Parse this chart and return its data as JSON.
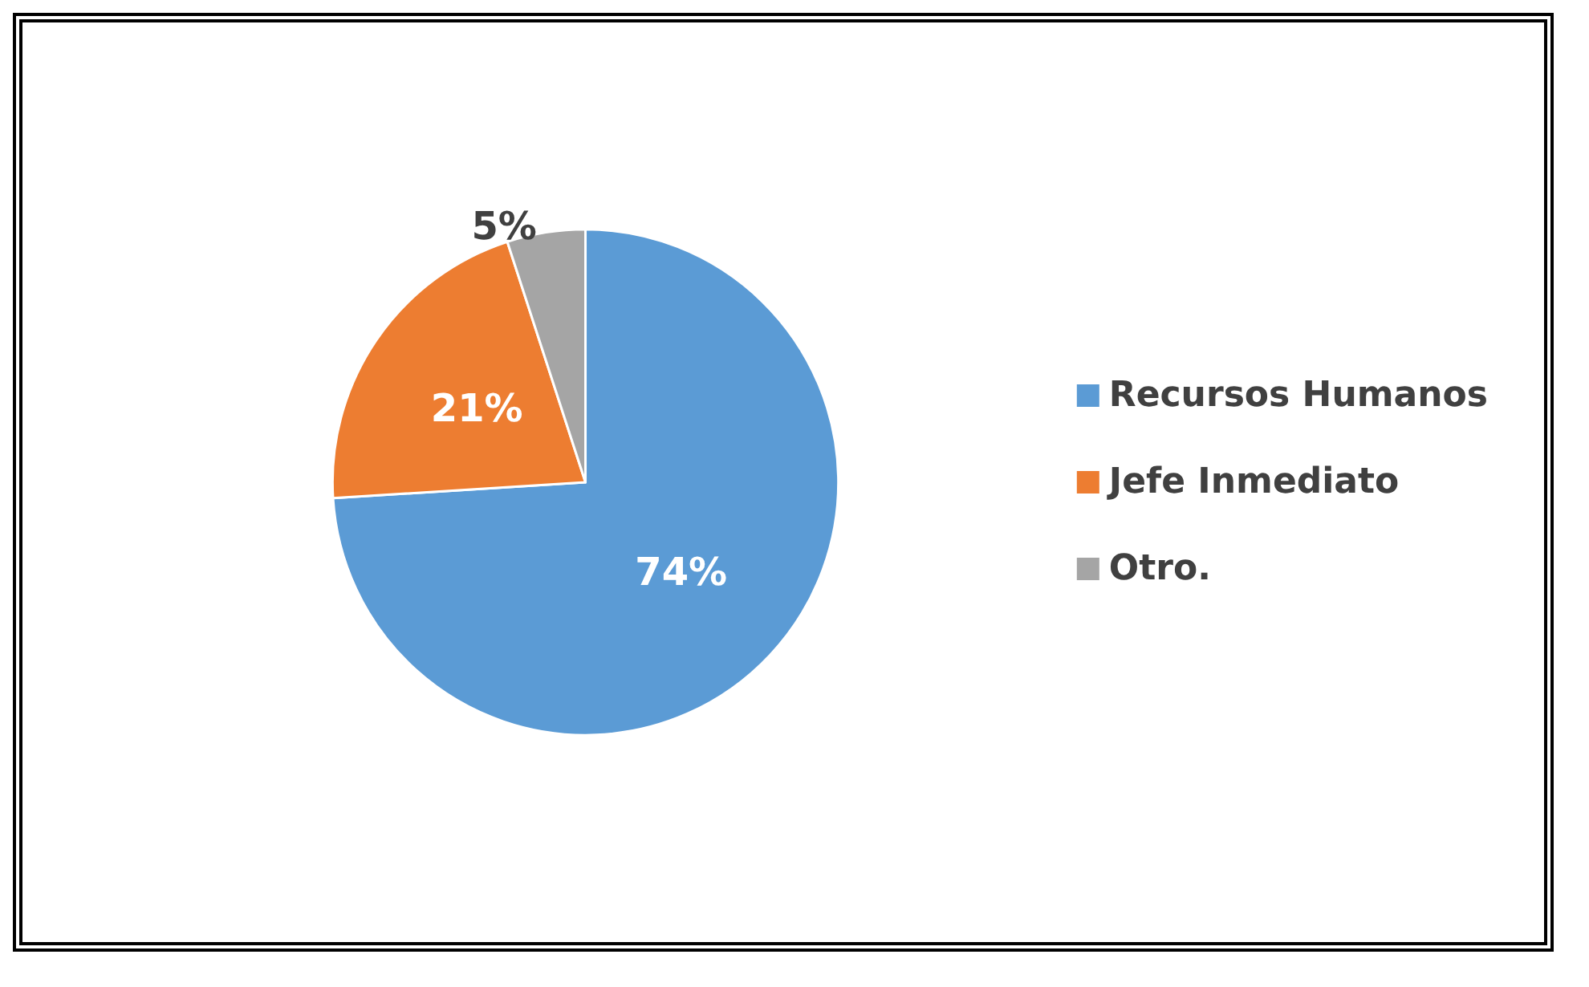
{
  "chart_data": {
    "type": "pie",
    "categories": [
      "Recursos Humanos",
      "Jefe Inmediato",
      "Otro."
    ],
    "values": [
      74,
      21,
      5
    ],
    "value_labels": [
      "74%",
      "21%",
      "5%"
    ],
    "colors": [
      "#5b9bd5",
      "#ed7d31",
      "#a5a5a5"
    ],
    "legend": "right"
  }
}
